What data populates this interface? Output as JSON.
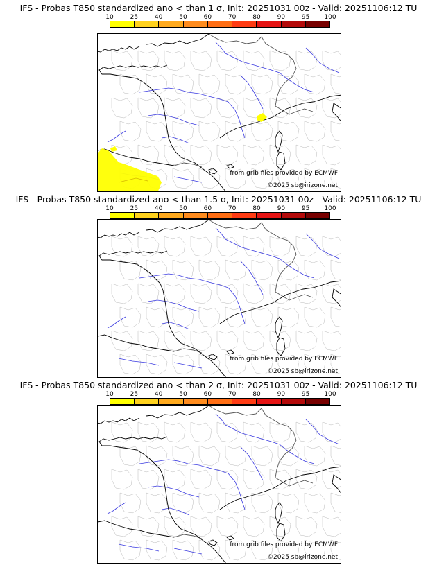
{
  "colorbar": {
    "ticks": [
      "10",
      "25",
      "40",
      "50",
      "60",
      "70",
      "80",
      "90",
      "95",
      "100"
    ],
    "colors": [
      "#ffff00",
      "#ffd21e",
      "#ffaa1e",
      "#ff8c1e",
      "#ff6e14",
      "#ff3c14",
      "#e61414",
      "#b40a0a",
      "#780000"
    ]
  },
  "credits": {
    "source": "from grib files provided by ECMWF",
    "copyright": "©2025 sb@irizone.net"
  },
  "panels": [
    {
      "title": "IFS - Probas T850  standardized ano < than 1 σ, Init: 20251031 00z - Valid: 20251106:12 TU",
      "highlight": "yellow probability areas over the Bay of Biscay / northern Spain and near Marseille"
    },
    {
      "title": "IFS - Probas T850  standardized ano < than 1.5 σ, Init: 20251031 00z - Valid: 20251106:12 TU",
      "highlight": ""
    },
    {
      "title": "IFS - Probas T850  standardized ano < than 2 σ, Init: 20251031 00z - Valid: 20251106:12 TU",
      "highlight": ""
    }
  ]
}
